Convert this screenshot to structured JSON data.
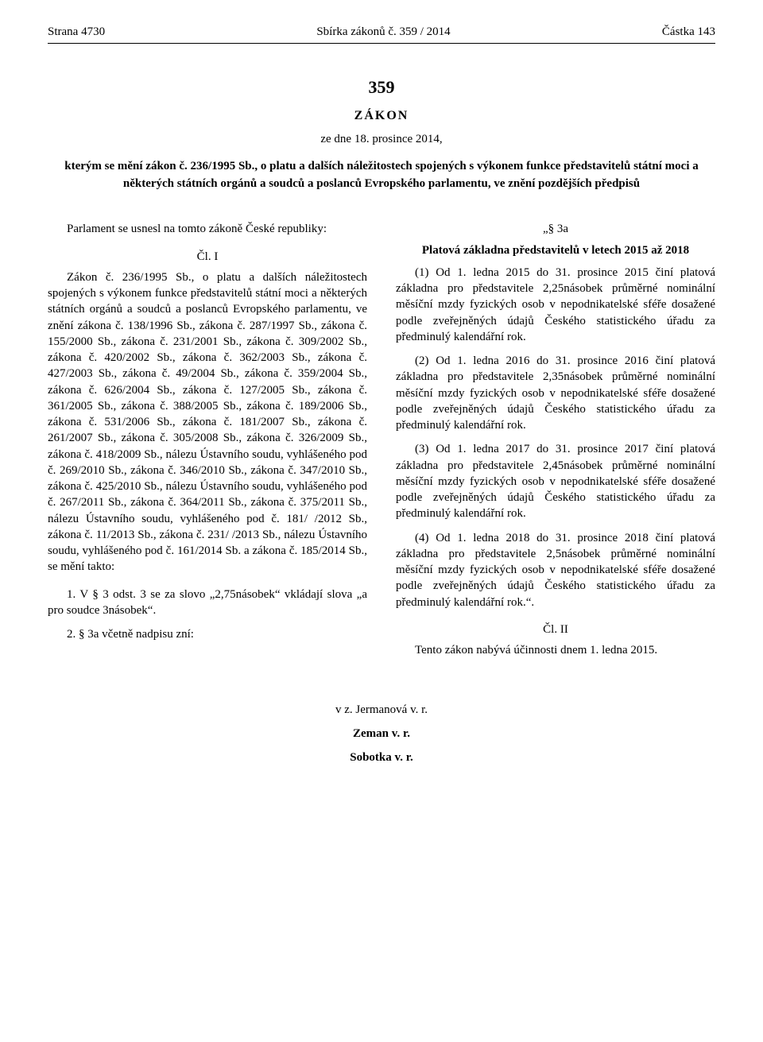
{
  "header": {
    "page_label": "Strana 4730",
    "center_prefix": "Sbírka zákonů č. ",
    "center_num": "359",
    "center_suffix": " / 2014",
    "right": "Částka 143"
  },
  "title": {
    "number": "359",
    "word": "ZÁKON",
    "date": "ze dne 18. prosince 2014,",
    "subtitle": "kterým se mění zákon č. 236/1995 Sb., o platu a dalších náležitostech spojených s výkonem funkce představitelů státní moci a některých státních orgánů a soudců a poslanců Evropského parlamentu, ve znění pozdějších předpisů"
  },
  "left": {
    "preamble": "Parlament se usnesl na tomto zákoně České republiky:",
    "article_label": "Čl. I",
    "body": "Zákon č. 236/1995 Sb., o platu a dalších náležitostech spojených s výkonem funkce představitelů státní moci a některých státních orgánů a soudců a poslanců Evropského parlamentu, ve znění zákona č. 138/1996 Sb., zákona č. 287/1997 Sb., zákona č. 155/2000 Sb., zákona č. 231/2001 Sb., zákona č. 309/2002 Sb., zákona č. 420/2002 Sb., zákona č. 362/2003 Sb., zákona č. 427/2003 Sb., zákona č. 49/2004 Sb., zákona č. 359/2004 Sb., zákona č. 626/2004 Sb., zákona č. 127/2005 Sb., zákona č. 361/2005 Sb., zákona č. 388/2005 Sb., zákona č. 189/2006 Sb., zákona č. 531/2006 Sb., zákona č. 181/2007 Sb., zákona č. 261/2007 Sb., zákona č. 305/2008 Sb., zákona č. 326/2009 Sb., zákona č. 418/2009 Sb., nálezu Ústavního soudu, vyhlášeného pod č. 269/2010 Sb., zákona č. 346/2010 Sb., zákona č. 347/2010 Sb., zákona č. 425/2010 Sb., nálezu Ústavního soudu, vyhlášeného pod č. 267/2011 Sb., zákona č. 364/2011 Sb., zákona č. 375/2011 Sb., nálezu Ústavního soudu, vyhlášeného pod č. 181/ /2012 Sb., zákona č. 11/2013 Sb., zákona č. 231/ /2013 Sb., nálezu Ústavního soudu, vyhlášeného pod č. 161/2014 Sb. a zákona č. 185/2014 Sb., se mění takto:",
    "item1": "1. V § 3 odst. 3 se za slovo „2,75násobek“ vkládají slova „a pro soudce 3násobek“.",
    "item2": "2. § 3a včetně nadpisu zní:"
  },
  "right": {
    "sec_label": "„§ 3a",
    "sec_title": "Platová základna představitelů v letech 2015 až 2018",
    "p1": "(1) Od 1. ledna 2015 do 31. prosince 2015 činí platová základna pro představitele 2,25násobek průměrné nominální měsíční mzdy fyzických osob v nepodnikatelské sféře dosažené podle zveřejněných údajů Českého statistického úřadu za předminulý kalendářní rok.",
    "p2": "(2) Od 1. ledna 2016 do 31. prosince 2016 činí platová základna pro představitele 2,35násobek průměrné nominální měsíční mzdy fyzických osob v nepodnikatelské sféře dosažené podle zveřejněných údajů Českého statistického úřadu za předminulý kalendářní rok.",
    "p3": "(3) Od 1. ledna 2017 do 31. prosince 2017 činí platová základna pro představitele 2,45násobek průměrné nominální měsíční mzdy fyzických osob v nepodnikatelské sféře dosažené podle zveřejněných údajů Českého statistického úřadu za předminulý kalendářní rok.",
    "p4": "(4) Od 1. ledna 2018 do 31. prosince 2018 činí platová základna pro představitele 2,5násobek průměrné nominální měsíční mzdy fyzických osob v nepodnikatelské sféře dosažené podle zveřejněných údajů Českého statistického úřadu za předminulý kalendářní rok.“.",
    "article2_label": "Čl. II",
    "article2_body": "Tento zákon nabývá účinnosti dnem 1. ledna 2015."
  },
  "signatures": {
    "s1": "v z. Jermanová v. r.",
    "s2": "Zeman v. r.",
    "s3": "Sobotka v. r."
  }
}
